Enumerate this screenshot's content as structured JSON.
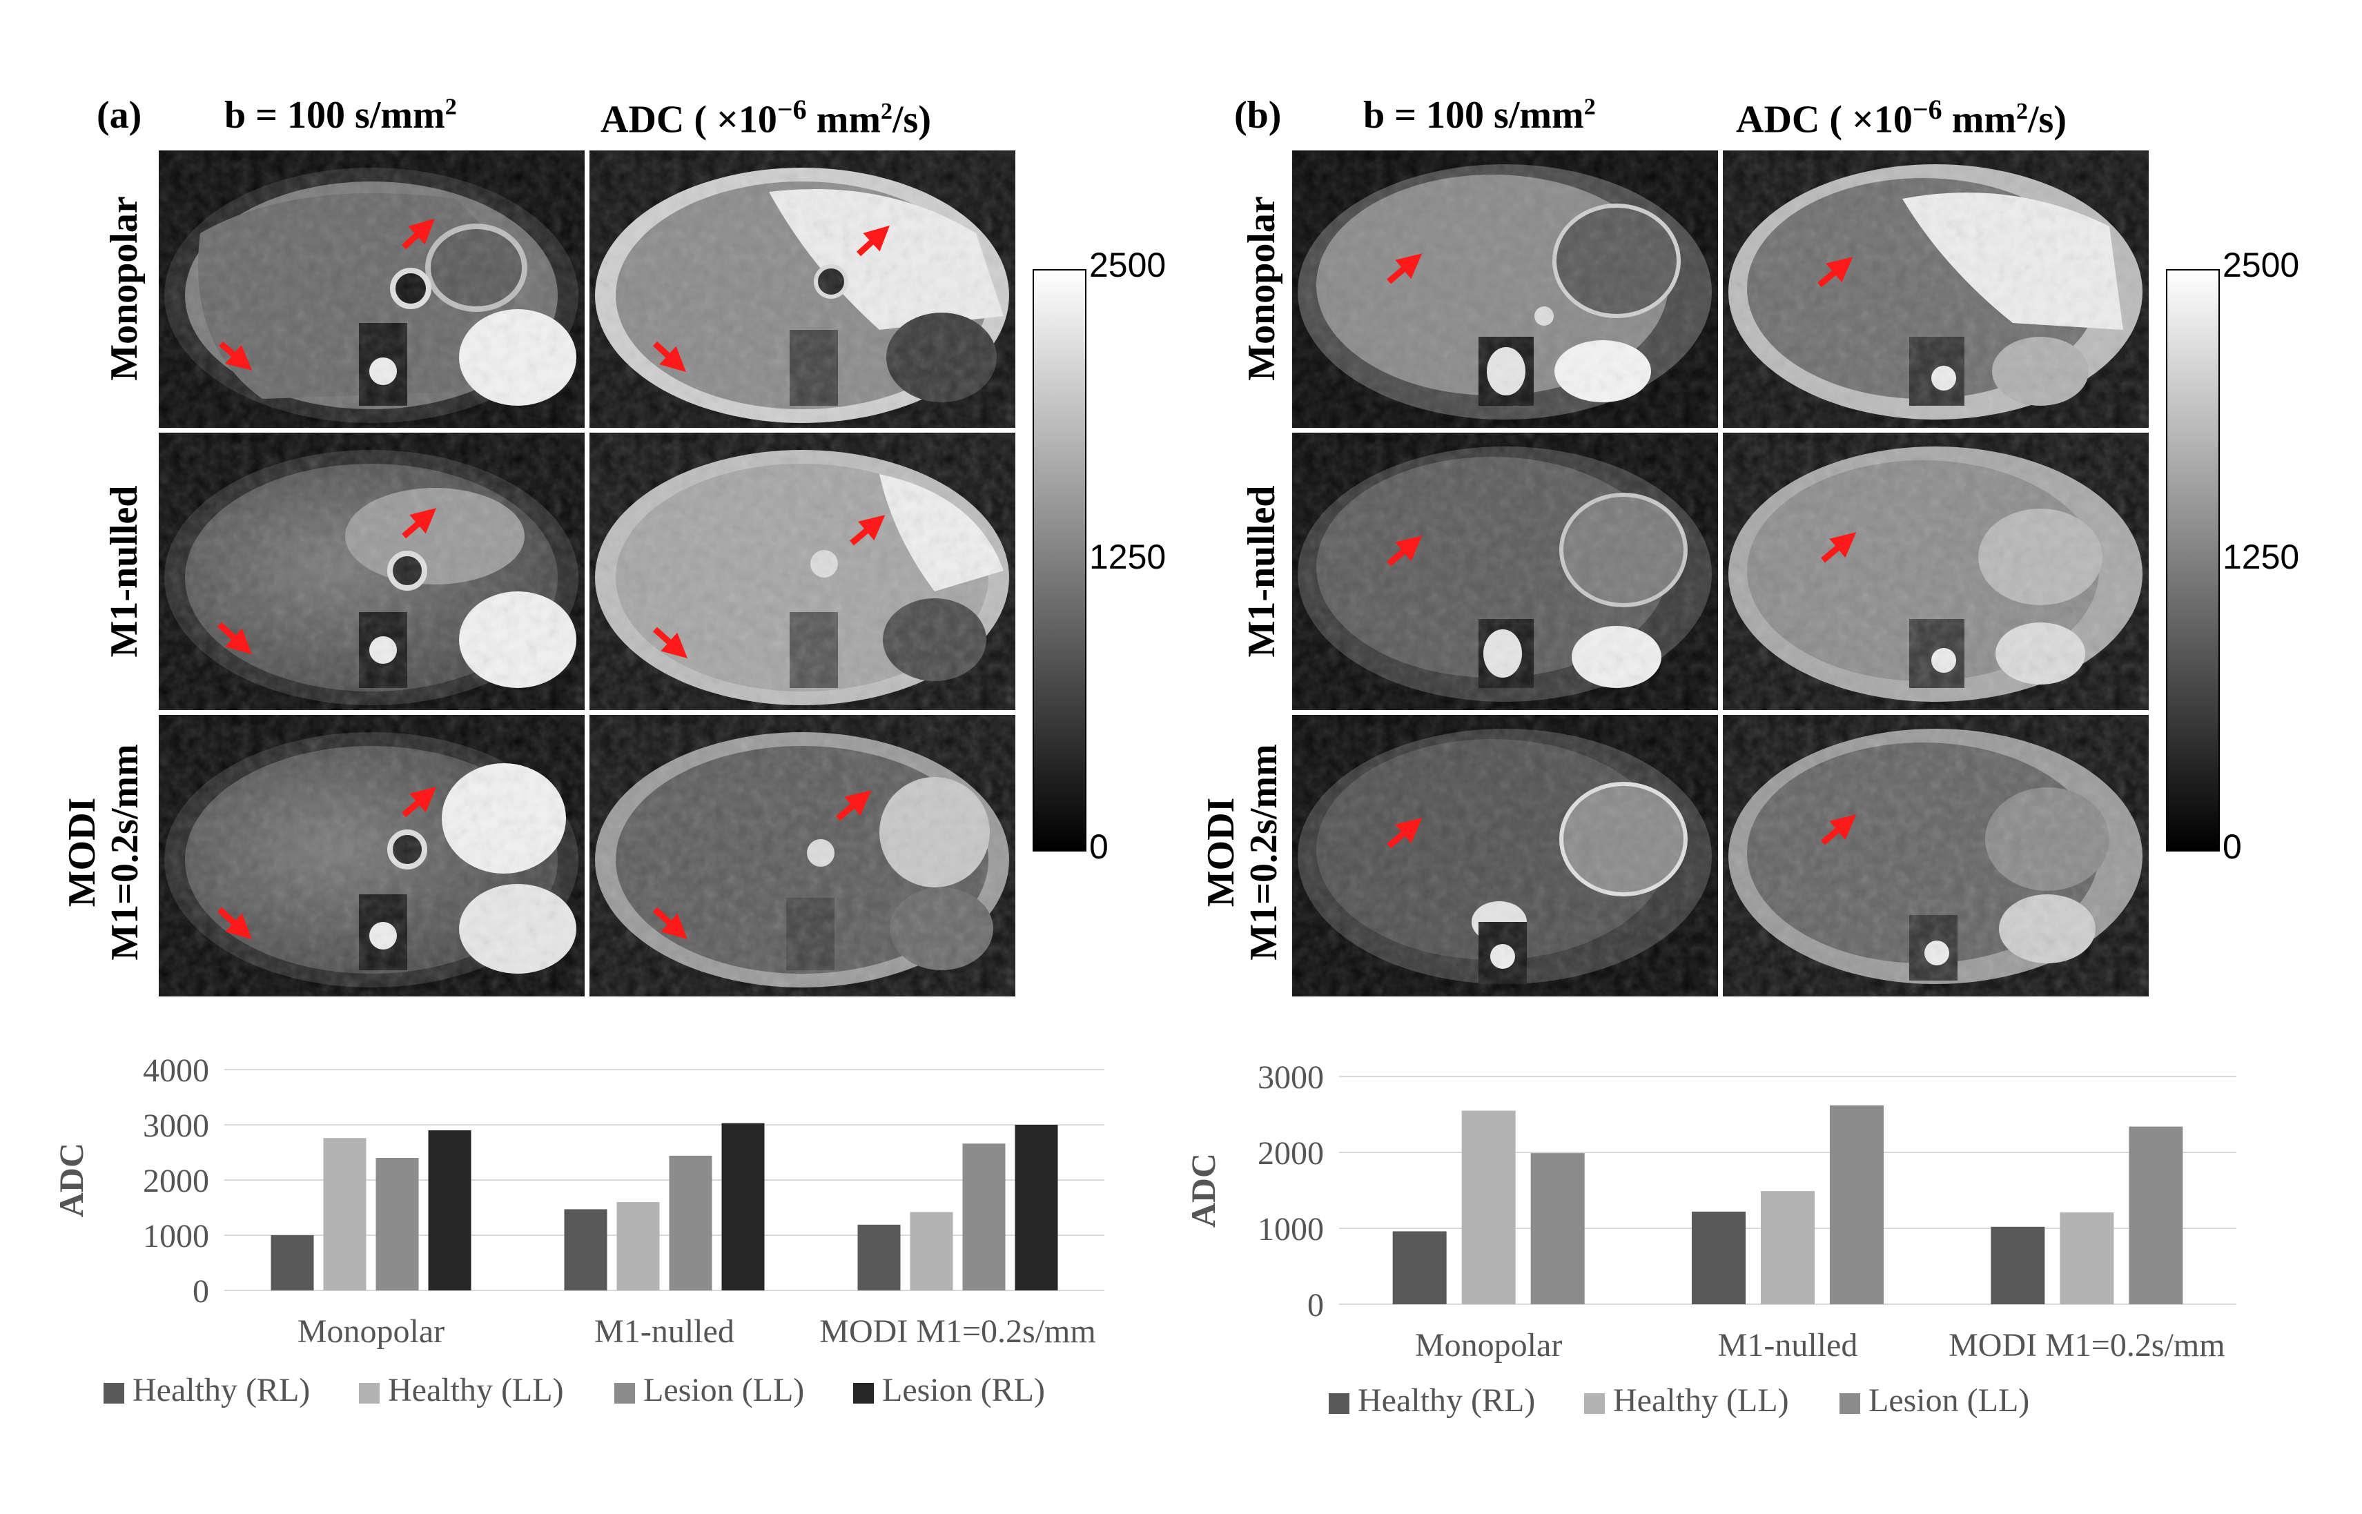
{
  "panel_a": {
    "label": "(a)",
    "col_b": "b = 100 s/mm",
    "col_b_sup": "2",
    "col_adc_pre": "ADC ( ×10",
    "col_adc_sup": "−6",
    "col_adc_post": " mm",
    "col_adc_sup2": "2",
    "col_adc_tail": "/s)",
    "rows": [
      "Monopolar",
      "M1-nulled",
      "MODI\nM1=0.2s/mm"
    ],
    "colorbar": {
      "max": "2500",
      "mid": "1250",
      "min": "0"
    }
  },
  "panel_b": {
    "label": "(b)",
    "col_b": "b = 100 s/mm",
    "col_b_sup": "2",
    "col_adc_pre": "ADC ( ×10",
    "col_adc_sup": "−6",
    "col_adc_post": " mm",
    "col_adc_sup2": "2",
    "col_adc_tail": "/s)",
    "rows": [
      "Monopolar",
      "M1-nulled",
      "MODI\nM1=0.2s/mm"
    ],
    "colorbar": {
      "max": "2500",
      "mid": "1250",
      "min": "0"
    }
  },
  "colors": {
    "arrow": "#ff1a1a",
    "healthy_rl": "#595959",
    "healthy_ll": "#b3b3b3",
    "lesion_ll": "#8c8c8c",
    "lesion_rl": "#262626",
    "grid": "#d9d9d9"
  },
  "chart_data": [
    {
      "type": "bar",
      "categories": [
        "Monopolar",
        "M1-nulled",
        "MODI M1=0.2s/mm"
      ],
      "ylabel": "ADC",
      "ylim": [
        0,
        4000
      ],
      "yticks": [
        0,
        1000,
        2000,
        3000,
        4000
      ],
      "grid": true,
      "legend": "bottom",
      "series": [
        {
          "name": "Healthy (RL)",
          "color": "#595959",
          "values": [
            1000,
            1470,
            1190
          ]
        },
        {
          "name": "Healthy (LL)",
          "color": "#b3b3b3",
          "values": [
            2760,
            1600,
            1420
          ]
        },
        {
          "name": "Lesion (LL)",
          "color": "#8c8c8c",
          "values": [
            2400,
            2440,
            2660
          ]
        },
        {
          "name": "Lesion (RL)",
          "color": "#262626",
          "values": [
            2900,
            3030,
            3000
          ]
        }
      ]
    },
    {
      "type": "bar",
      "categories": [
        "Monopolar",
        "M1-nulled",
        "MODI M1=0.2s/mm"
      ],
      "ylabel": "ADC",
      "ylim": [
        0,
        3000
      ],
      "yticks": [
        0,
        1000,
        2000,
        3000
      ],
      "grid": true,
      "legend": "bottom",
      "series": [
        {
          "name": "Healthy (RL)",
          "color": "#595959",
          "values": [
            960,
            1220,
            1020
          ]
        },
        {
          "name": "Healthy (LL)",
          "color": "#b3b3b3",
          "values": [
            2550,
            1490,
            1210
          ]
        },
        {
          "name": "Lesion (LL)",
          "color": "#8c8c8c",
          "values": [
            1990,
            2620,
            2340
          ]
        }
      ]
    }
  ]
}
